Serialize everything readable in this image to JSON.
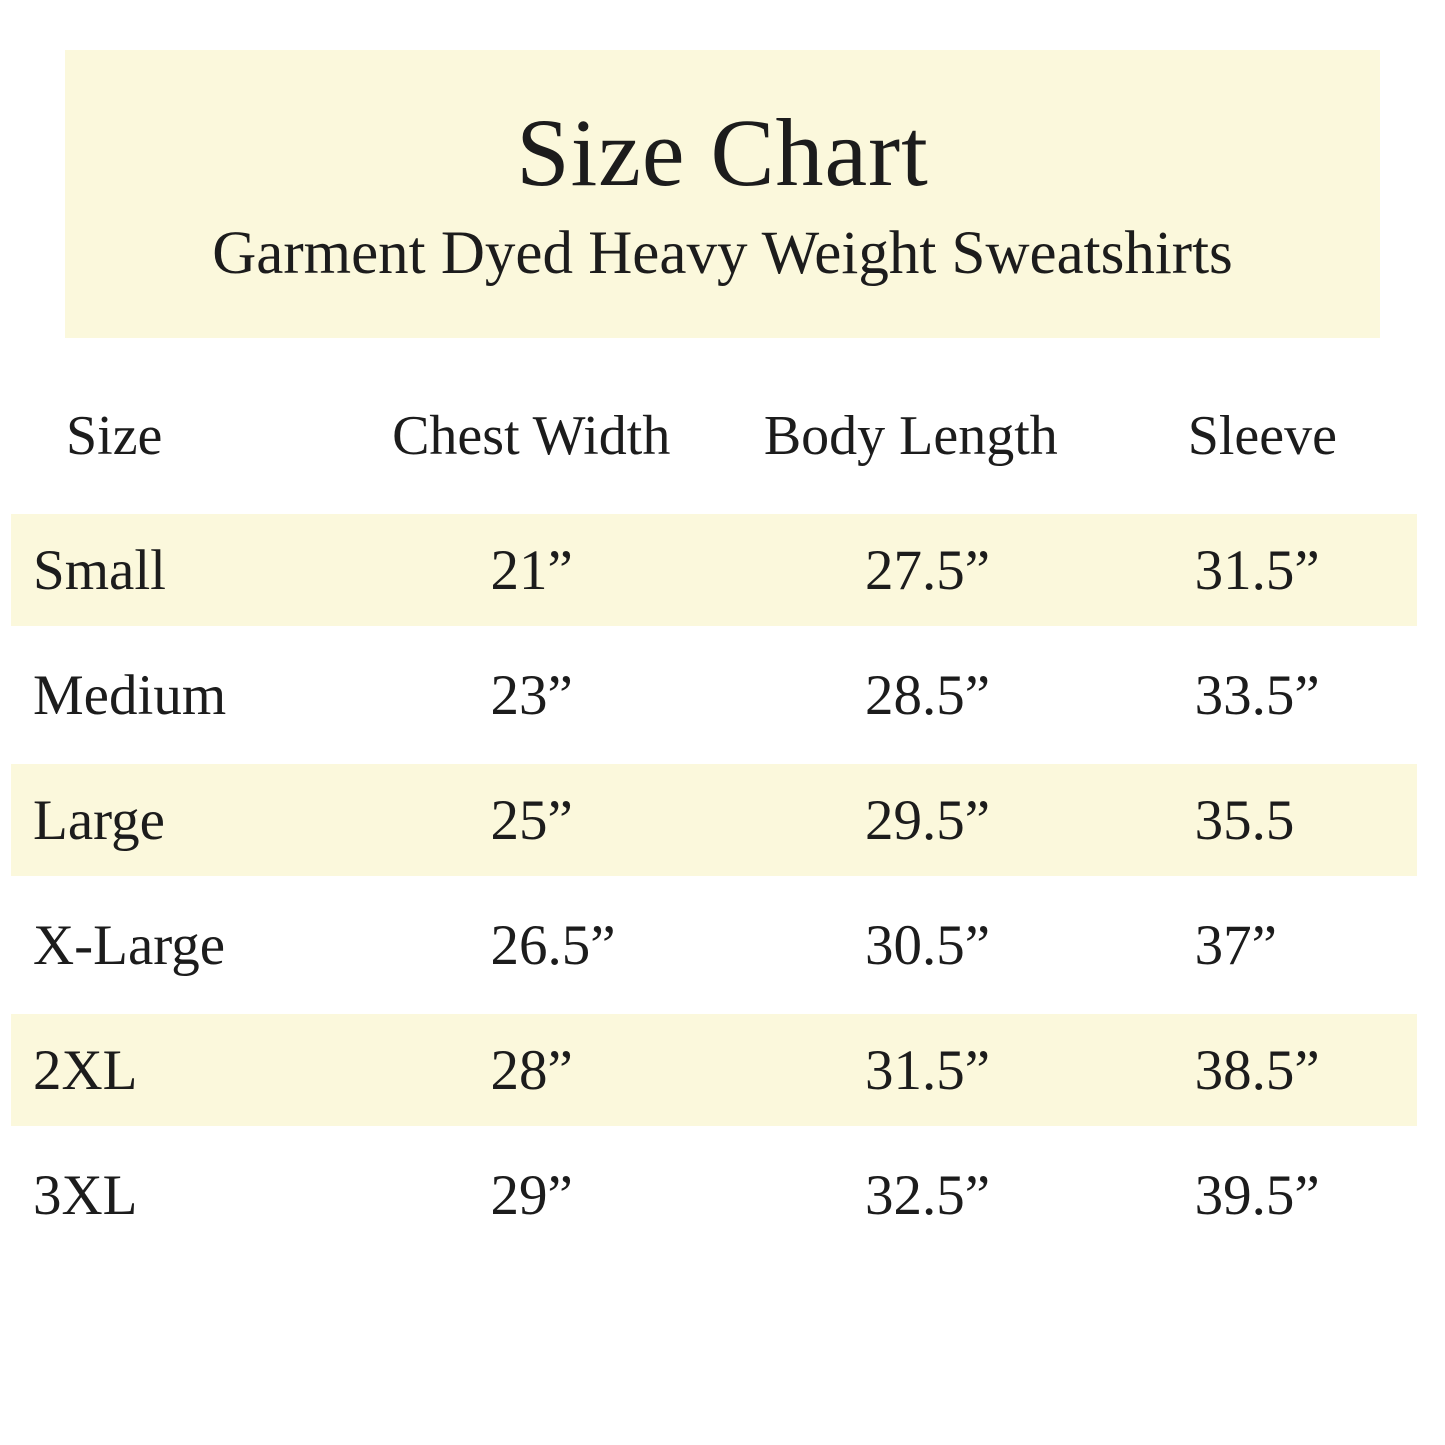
{
  "theme": {
    "band_color": "#fbf8dc",
    "text_color": "#1c1c1c",
    "background_color": "#ffffff"
  },
  "header": {
    "title": "Size Chart",
    "subtitle": "Garment Dyed Heavy Weight Sweatshirts"
  },
  "chart_data": {
    "type": "table",
    "title": "Size Chart",
    "subtitle": "Garment Dyed Heavy Weight Sweatshirts",
    "columns": [
      "Size",
      "Chest Width",
      "Body Length",
      "Sleeve"
    ],
    "rows": [
      [
        "Small",
        "21”",
        "27.5”",
        "31.5”"
      ],
      [
        "Medium",
        "23”",
        "28.5”",
        "33.5”"
      ],
      [
        "Large",
        "25”",
        "29.5”",
        "35.5"
      ],
      [
        "X-Large",
        "26.5”",
        "30.5”",
        "37”"
      ],
      [
        "2XL",
        "28”",
        "31.5”",
        "38.5”"
      ],
      [
        "3XL",
        "29”",
        "32.5”",
        "39.5”"
      ]
    ],
    "highlighted_rows": [
      0,
      2,
      4
    ],
    "layout": {
      "highlight_style": "alternating cream bands starting with first data row",
      "grid": "off",
      "units": "inches"
    }
  }
}
